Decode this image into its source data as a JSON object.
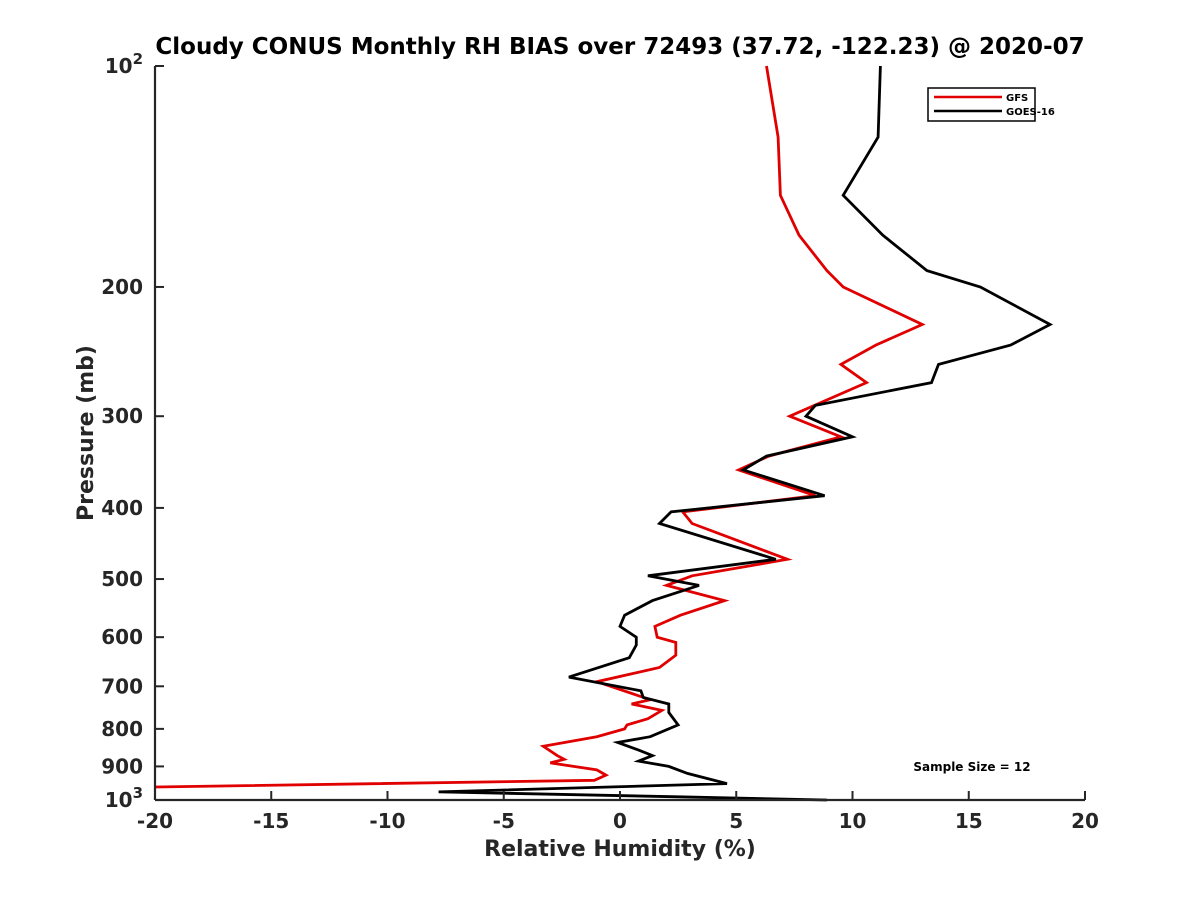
{
  "chart_data": {
    "type": "line",
    "title": "Cloudy CONUS Monthly RH BIAS over 72493 (37.72, -122.23) @ 2020-07",
    "xlabel": "Relative Humidity (%)",
    "ylabel": "Pressure (mb)",
    "xlim": [
      -20,
      20
    ],
    "ylim": [
      100,
      1000
    ],
    "y_scale": "log",
    "y_reversed": true,
    "x_ticks": [
      "-20",
      "-15",
      "-10",
      "-5",
      "0",
      "5",
      "10",
      "15",
      "20"
    ],
    "y_ticks": [
      {
        "value": 100,
        "base": "10",
        "exp": "2"
      },
      {
        "value": 200,
        "label": "200"
      },
      {
        "value": 300,
        "label": "300"
      },
      {
        "value": 400,
        "label": "400"
      },
      {
        "value": 500,
        "label": "500"
      },
      {
        "value": 600,
        "label": "600"
      },
      {
        "value": 700,
        "label": "700"
      },
      {
        "value": 800,
        "label": "800"
      },
      {
        "value": 900,
        "label": "900"
      },
      {
        "value": 1000,
        "base": "10",
        "exp": "3"
      }
    ],
    "grid": false,
    "legend_position": "top-right",
    "annotation": "Sample Size = 12",
    "series": [
      {
        "name": "GFS",
        "color": "#e00000",
        "points": [
          [
            6.3,
            100
          ],
          [
            6.8,
            125
          ],
          [
            6.9,
            150
          ],
          [
            7.7,
            170
          ],
          [
            8.9,
            190
          ],
          [
            9.6,
            200
          ],
          [
            13.0,
            225
          ],
          [
            11.0,
            240
          ],
          [
            9.5,
            255
          ],
          [
            10.6,
            270
          ],
          [
            7.3,
            300
          ],
          [
            9.5,
            320
          ],
          [
            6.4,
            340
          ],
          [
            5.1,
            355
          ],
          [
            8.4,
            385
          ],
          [
            2.7,
            405
          ],
          [
            3.1,
            420
          ],
          [
            4.8,
            440
          ],
          [
            7.2,
            470
          ],
          [
            3.1,
            495
          ],
          [
            2.0,
            510
          ],
          [
            4.5,
            535
          ],
          [
            2.6,
            560
          ],
          [
            1.5,
            580
          ],
          [
            1.6,
            600
          ],
          [
            2.4,
            610
          ],
          [
            2.4,
            635
          ],
          [
            1.7,
            660
          ],
          [
            -1.0,
            690
          ],
          [
            1.3,
            730
          ],
          [
            0.5,
            740
          ],
          [
            1.8,
            755
          ],
          [
            1.2,
            775
          ],
          [
            0.3,
            790
          ],
          [
            0.2,
            800
          ],
          [
            -1.0,
            820
          ],
          [
            -3.3,
            845
          ],
          [
            -2.7,
            870
          ],
          [
            -2.4,
            880
          ],
          [
            -3.0,
            890
          ],
          [
            -1.0,
            910
          ],
          [
            -0.6,
            925
          ],
          [
            -1.1,
            940
          ],
          [
            -20.0,
            960
          ]
        ]
      },
      {
        "name": "GOES-16",
        "color": "#000000",
        "points": [
          [
            11.2,
            100
          ],
          [
            11.1,
            125
          ],
          [
            9.6,
            150
          ],
          [
            11.3,
            170
          ],
          [
            13.2,
            190
          ],
          [
            15.5,
            200
          ],
          [
            18.5,
            225
          ],
          [
            16.8,
            240
          ],
          [
            13.7,
            255
          ],
          [
            13.4,
            270
          ],
          [
            8.4,
            290
          ],
          [
            8.0,
            300
          ],
          [
            10.0,
            320
          ],
          [
            6.3,
            340
          ],
          [
            5.3,
            355
          ],
          [
            8.8,
            385
          ],
          [
            2.2,
            405
          ],
          [
            1.7,
            420
          ],
          [
            6.7,
            470
          ],
          [
            1.2,
            495
          ],
          [
            3.4,
            510
          ],
          [
            1.4,
            535
          ],
          [
            0.2,
            560
          ],
          [
            0.0,
            580
          ],
          [
            0.7,
            600
          ],
          [
            0.7,
            615
          ],
          [
            0.4,
            640
          ],
          [
            -2.2,
            680
          ],
          [
            0.9,
            710
          ],
          [
            1.0,
            725
          ],
          [
            2.1,
            740
          ],
          [
            2.1,
            760
          ],
          [
            2.5,
            790
          ],
          [
            1.3,
            820
          ],
          [
            -0.1,
            835
          ],
          [
            0.8,
            855
          ],
          [
            1.4,
            870
          ],
          [
            0.8,
            885
          ],
          [
            2.1,
            900
          ],
          [
            2.9,
            920
          ],
          [
            4.6,
            950
          ],
          [
            -7.8,
            975
          ],
          [
            2.5,
            990
          ],
          [
            8.9,
            1000
          ]
        ]
      }
    ]
  }
}
